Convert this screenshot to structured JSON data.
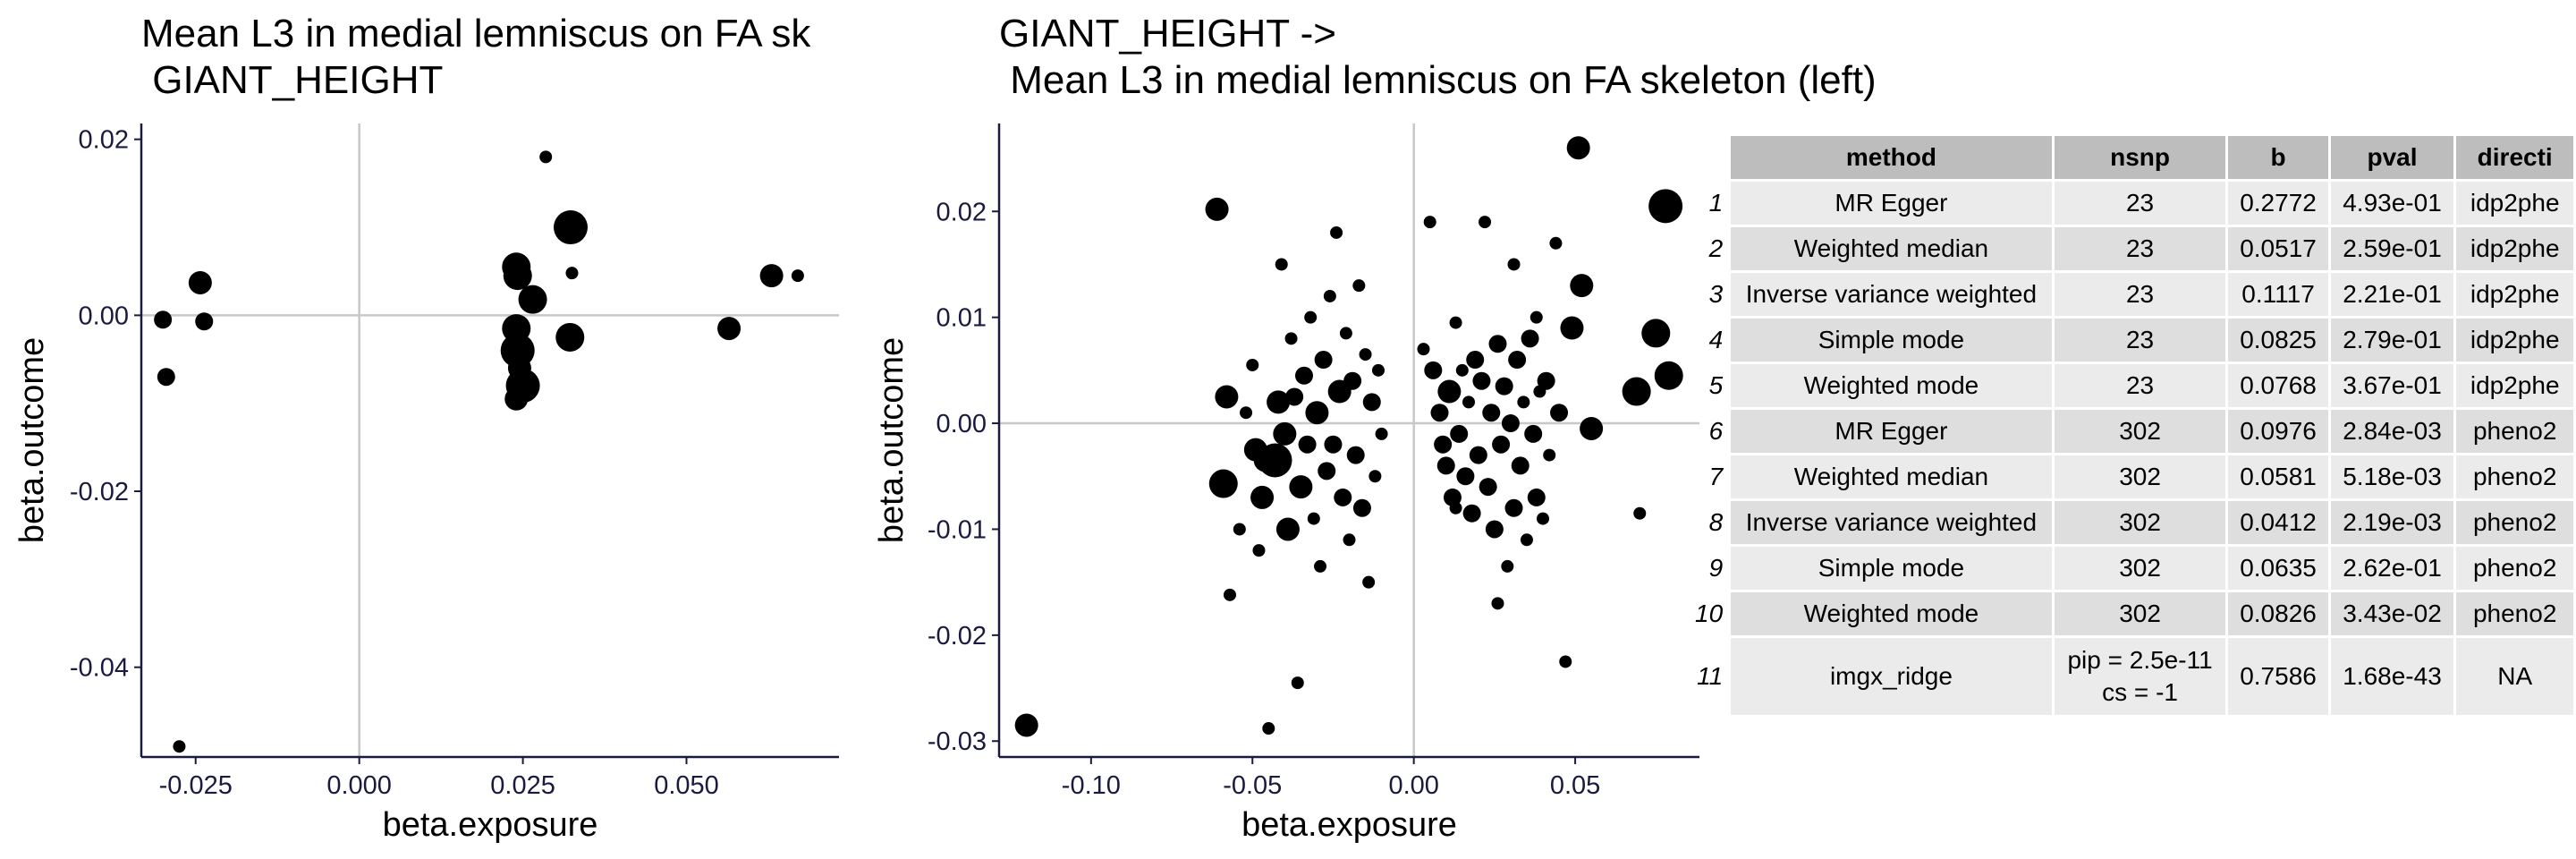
{
  "chart_data": [
    {
      "type": "scatter",
      "title_lines": [
        "Mean L3 in medial lemniscus on FA sk",
        " GIANT_HEIGHT"
      ],
      "xlabel": "beta.exposure",
      "ylabel": "beta.outcome",
      "xlim": [
        -0.0333,
        0.0733
      ],
      "ylim": [
        -0.0502,
        0.0218
      ],
      "xticks": [
        -0.025,
        0,
        0.025,
        0.05
      ],
      "xtick_labels": [
        "-0.025",
        "0.000",
        "0.025",
        "0.050"
      ],
      "yticks": [
        0.02,
        0,
        -0.02,
        -0.04
      ],
      "ytick_labels": [
        "0.02",
        "0.00",
        "-0.02",
        "-0.04"
      ],
      "reference_lines": {
        "x": 0,
        "y": 0
      },
      "points": [
        {
          "x": -0.03,
          "y": -0.0005,
          "s": 2
        },
        {
          "x": -0.0295,
          "y": -0.007,
          "s": 2
        },
        {
          "x": -0.0243,
          "y": 0.0037,
          "s": 3
        },
        {
          "x": -0.0237,
          "y": -0.0007,
          "s": 2
        },
        {
          "x": -0.0275,
          "y": -0.049,
          "s": 1
        },
        {
          "x": 0.024,
          "y": 0.0055,
          "s": 4
        },
        {
          "x": 0.0242,
          "y": 0.0045,
          "s": 4
        },
        {
          "x": 0.024,
          "y": -0.0015,
          "s": 4
        },
        {
          "x": 0.0242,
          "y": -0.004,
          "s": 5
        },
        {
          "x": 0.0245,
          "y": -0.006,
          "s": 3
        },
        {
          "x": 0.024,
          "y": -0.0095,
          "s": 3
        },
        {
          "x": 0.025,
          "y": -0.008,
          "s": 5
        },
        {
          "x": 0.0265,
          "y": 0.0018,
          "s": 4
        },
        {
          "x": 0.0285,
          "y": 0.018,
          "s": 1
        },
        {
          "x": 0.0323,
          "y": 0.01,
          "s": 5
        },
        {
          "x": 0.0325,
          "y": 0.0048,
          "s": 1
        },
        {
          "x": 0.0322,
          "y": -0.0025,
          "s": 4
        },
        {
          "x": 0.0565,
          "y": -0.0015,
          "s": 3
        },
        {
          "x": 0.063,
          "y": 0.0045,
          "s": 3
        },
        {
          "x": 0.067,
          "y": 0.0045,
          "s": 1
        }
      ]
    },
    {
      "type": "scatter",
      "title_lines": [
        "GIANT_HEIGHT ->",
        " Mean L3 in medial lemniscus on FA skeleton (left)"
      ],
      "xlabel": "beta.exposure",
      "ylabel": "beta.outcome",
      "xlim": [
        -0.1285,
        0.0885
      ],
      "ylim": [
        -0.0315,
        0.0283
      ],
      "xticks": [
        -0.1,
        -0.05,
        0,
        0.05
      ],
      "xtick_labels": [
        "-0.10",
        "-0.05",
        "0.00",
        "0.05"
      ],
      "yticks": [
        0.02,
        0.01,
        0,
        -0.01,
        -0.02,
        -0.03
      ],
      "ytick_labels": [
        "0.02",
        "0.01",
        "0.00",
        "-0.01",
        "-0.02",
        "-0.03"
      ],
      "reference_lines": {
        "x": 0,
        "y": 0
      },
      "points": [
        {
          "x": -0.12,
          "y": -0.0285,
          "s": 3
        },
        {
          "x": -0.061,
          "y": 0.0202,
          "s": 3
        },
        {
          "x": -0.058,
          "y": 0.0025,
          "s": 3
        },
        {
          "x": -0.059,
          "y": -0.0057,
          "s": 4
        },
        {
          "x": -0.057,
          "y": -0.0162,
          "s": 1
        },
        {
          "x": -0.05,
          "y": 0.0055,
          "s": 1
        },
        {
          "x": -0.049,
          "y": -0.0025,
          "s": 3
        },
        {
          "x": -0.047,
          "y": -0.007,
          "s": 3
        },
        {
          "x": -0.046,
          "y": -0.0035,
          "s": 3
        },
        {
          "x": -0.045,
          "y": -0.0288,
          "s": 1
        },
        {
          "x": -0.043,
          "y": -0.0035,
          "s": 5
        },
        {
          "x": -0.042,
          "y": 0.002,
          "s": 3
        },
        {
          "x": -0.041,
          "y": 0.015,
          "s": 1
        },
        {
          "x": -0.04,
          "y": -0.001,
          "s": 3
        },
        {
          "x": -0.038,
          "y": 0.008,
          "s": 1
        },
        {
          "x": -0.036,
          "y": -0.0245,
          "s": 1
        },
        {
          "x": -0.035,
          "y": -0.006,
          "s": 3
        },
        {
          "x": -0.034,
          "y": 0.0045,
          "s": 2
        },
        {
          "x": -0.032,
          "y": 0.01,
          "s": 1
        },
        {
          "x": -0.031,
          "y": -0.009,
          "s": 1
        },
        {
          "x": -0.03,
          "y": 0.001,
          "s": 3
        },
        {
          "x": -0.029,
          "y": -0.0135,
          "s": 1
        },
        {
          "x": -0.028,
          "y": 0.006,
          "s": 2
        },
        {
          "x": -0.027,
          "y": -0.0045,
          "s": 2
        },
        {
          "x": -0.026,
          "y": 0.012,
          "s": 1
        },
        {
          "x": -0.025,
          "y": -0.002,
          "s": 2
        },
        {
          "x": -0.024,
          "y": 0.018,
          "s": 1
        },
        {
          "x": -0.023,
          "y": 0.003,
          "s": 3
        },
        {
          "x": -0.022,
          "y": -0.007,
          "s": 2
        },
        {
          "x": -0.021,
          "y": 0.0085,
          "s": 1
        },
        {
          "x": -0.02,
          "y": -0.011,
          "s": 1
        },
        {
          "x": -0.019,
          "y": 0.004,
          "s": 2
        },
        {
          "x": -0.018,
          "y": -0.003,
          "s": 2
        },
        {
          "x": -0.017,
          "y": 0.013,
          "s": 1
        },
        {
          "x": -0.016,
          "y": -0.008,
          "s": 2
        },
        {
          "x": -0.015,
          "y": 0.0065,
          "s": 1
        },
        {
          "x": -0.014,
          "y": -0.015,
          "s": 1
        },
        {
          "x": -0.013,
          "y": 0.002,
          "s": 2
        },
        {
          "x": -0.012,
          "y": -0.005,
          "s": 1
        },
        {
          "x": -0.011,
          "y": 0.005,
          "s": 1
        },
        {
          "x": -0.01,
          "y": -0.001,
          "s": 1
        },
        {
          "x": -0.052,
          "y": 0.001,
          "s": 1
        },
        {
          "x": -0.054,
          "y": -0.01,
          "s": 1
        },
        {
          "x": -0.048,
          "y": -0.012,
          "s": 1
        },
        {
          "x": -0.039,
          "y": -0.01,
          "s": 3
        },
        {
          "x": -0.037,
          "y": 0.0025,
          "s": 2
        },
        {
          "x": -0.033,
          "y": -0.002,
          "s": 2
        },
        {
          "x": 0.005,
          "y": 0.019,
          "s": 1
        },
        {
          "x": 0.003,
          "y": 0.007,
          "s": 1
        },
        {
          "x": 0.006,
          "y": 0.005,
          "s": 2
        },
        {
          "x": 0.008,
          "y": 0.001,
          "s": 2
        },
        {
          "x": 0.009,
          "y": -0.002,
          "s": 2
        },
        {
          "x": 0.01,
          "y": -0.004,
          "s": 2
        },
        {
          "x": 0.011,
          "y": 0.003,
          "s": 3
        },
        {
          "x": 0.012,
          "y": -0.007,
          "s": 2
        },
        {
          "x": 0.013,
          "y": 0.0095,
          "s": 1
        },
        {
          "x": 0.014,
          "y": -0.001,
          "s": 2
        },
        {
          "x": 0.015,
          "y": 0.005,
          "s": 1
        },
        {
          "x": 0.016,
          "y": -0.005,
          "s": 2
        },
        {
          "x": 0.017,
          "y": 0.002,
          "s": 1
        },
        {
          "x": 0.018,
          "y": -0.0085,
          "s": 2
        },
        {
          "x": 0.019,
          "y": 0.006,
          "s": 2
        },
        {
          "x": 0.02,
          "y": -0.003,
          "s": 2
        },
        {
          "x": 0.021,
          "y": 0.004,
          "s": 2
        },
        {
          "x": 0.022,
          "y": 0.019,
          "s": 1
        },
        {
          "x": 0.023,
          "y": -0.006,
          "s": 2
        },
        {
          "x": 0.024,
          "y": 0.001,
          "s": 2
        },
        {
          "x": 0.025,
          "y": -0.01,
          "s": 2
        },
        {
          "x": 0.026,
          "y": 0.0075,
          "s": 2
        },
        {
          "x": 0.027,
          "y": -0.002,
          "s": 2
        },
        {
          "x": 0.028,
          "y": 0.0035,
          "s": 2
        },
        {
          "x": 0.029,
          "y": -0.0135,
          "s": 1
        },
        {
          "x": 0.03,
          "y": 0.0,
          "s": 2
        },
        {
          "x": 0.031,
          "y": -0.008,
          "s": 2
        },
        {
          "x": 0.032,
          "y": 0.006,
          "s": 2
        },
        {
          "x": 0.033,
          "y": -0.004,
          "s": 2
        },
        {
          "x": 0.034,
          "y": 0.002,
          "s": 1
        },
        {
          "x": 0.035,
          "y": -0.011,
          "s": 1
        },
        {
          "x": 0.036,
          "y": 0.008,
          "s": 2
        },
        {
          "x": 0.037,
          "y": -0.001,
          "s": 2
        },
        {
          "x": 0.038,
          "y": -0.007,
          "s": 2
        },
        {
          "x": 0.039,
          "y": 0.003,
          "s": 1
        },
        {
          "x": 0.04,
          "y": -0.009,
          "s": 1
        },
        {
          "x": 0.041,
          "y": 0.004,
          "s": 2
        },
        {
          "x": 0.042,
          "y": -0.003,
          "s": 1
        },
        {
          "x": 0.044,
          "y": 0.017,
          "s": 1
        },
        {
          "x": 0.045,
          "y": 0.001,
          "s": 2
        },
        {
          "x": 0.047,
          "y": -0.0225,
          "s": 1
        },
        {
          "x": 0.049,
          "y": 0.009,
          "s": 3
        },
        {
          "x": 0.051,
          "y": 0.026,
          "s": 3
        },
        {
          "x": 0.052,
          "y": 0.013,
          "s": 3
        },
        {
          "x": 0.055,
          "y": -0.0005,
          "s": 3
        },
        {
          "x": 0.069,
          "y": 0.003,
          "s": 4
        },
        {
          "x": 0.07,
          "y": -0.0085,
          "s": 1
        },
        {
          "x": 0.075,
          "y": 0.0085,
          "s": 4
        },
        {
          "x": 0.078,
          "y": 0.0205,
          "s": 5
        },
        {
          "x": 0.079,
          "y": 0.0045,
          "s": 4
        },
        {
          "x": 0.026,
          "y": -0.017,
          "s": 1
        },
        {
          "x": 0.013,
          "y": -0.008,
          "s": 1
        },
        {
          "x": 0.031,
          "y": 0.015,
          "s": 1
        },
        {
          "x": 0.038,
          "y": 0.01,
          "s": 1
        }
      ]
    }
  ],
  "table": {
    "headers": [
      "method",
      "nsnp",
      "b",
      "pval",
      "directi"
    ],
    "rows": [
      {
        "n": "1",
        "method": "MR Egger",
        "nsnp": "23",
        "b": "0.2772",
        "pval": "4.93e-01",
        "direction": "idp2phe"
      },
      {
        "n": "2",
        "method": "Weighted median",
        "nsnp": "23",
        "b": "0.0517",
        "pval": "2.59e-01",
        "direction": "idp2phe"
      },
      {
        "n": "3",
        "method": "Inverse variance weighted",
        "nsnp": "23",
        "b": "0.1117",
        "pval": "2.21e-01",
        "direction": "idp2phe"
      },
      {
        "n": "4",
        "method": "Simple mode",
        "nsnp": "23",
        "b": "0.0825",
        "pval": "2.79e-01",
        "direction": "idp2phe"
      },
      {
        "n": "5",
        "method": "Weighted mode",
        "nsnp": "23",
        "b": "0.0768",
        "pval": "3.67e-01",
        "direction": "idp2phe"
      },
      {
        "n": "6",
        "method": "MR Egger",
        "nsnp": "302",
        "b": "0.0976",
        "pval": "2.84e-03",
        "direction": "pheno2"
      },
      {
        "n": "7",
        "method": "Weighted median",
        "nsnp": "302",
        "b": "0.0581",
        "pval": "5.18e-03",
        "direction": "pheno2"
      },
      {
        "n": "8",
        "method": "Inverse variance weighted",
        "nsnp": "302",
        "b": "0.0412",
        "pval": "2.19e-03",
        "direction": "pheno2"
      },
      {
        "n": "9",
        "method": "Simple mode",
        "nsnp": "302",
        "b": "0.0635",
        "pval": "2.62e-01",
        "direction": "pheno2"
      },
      {
        "n": "10",
        "method": "Weighted mode",
        "nsnp": "302",
        "b": "0.0826",
        "pval": "3.43e-02",
        "direction": "pheno2"
      },
      {
        "n": "11",
        "method": "imgx_ridge",
        "nsnp_line1": "pip = 2.5e-11",
        "nsnp_line2": "cs = -1",
        "b": "0.7586",
        "pval": "1.68e-43",
        "direction": "NA"
      }
    ]
  }
}
